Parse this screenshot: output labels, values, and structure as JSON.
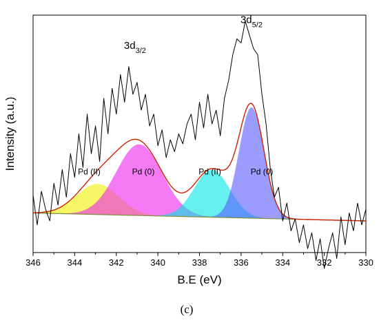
{
  "chart_data": {
    "type": "line",
    "title": "",
    "xlabel": "B.E (eV)",
    "ylabel": "Intensity (a.u.)",
    "xlim": [
      346,
      330
    ],
    "x_reversed": true,
    "x_ticks": [
      346,
      344,
      342,
      340,
      338,
      336,
      334,
      332,
      330
    ],
    "ylim": [
      -0.2,
      1.0
    ],
    "grid": false,
    "legend": "none",
    "panel_label": "(c)",
    "peak_labels": [
      {
        "text": "3d",
        "sub": "3/2",
        "x": 341.1,
        "y": 0.83
      },
      {
        "text": "3d",
        "sub": "5/2",
        "x": 335.5,
        "y": 0.96
      }
    ],
    "components": [
      {
        "name": "Pd (II)",
        "center": 342.9,
        "height": 0.155,
        "sigma": 1.0,
        "color": "#f2f200",
        "label_x": 343.3,
        "label_y": 0.195
      },
      {
        "name": "Pd (0)",
        "center": 340.9,
        "height": 0.36,
        "sigma": 1.1,
        "color": "#ee22ee",
        "label_x": 340.7,
        "label_y": 0.195
      },
      {
        "name": "Pd (II)",
        "center": 337.4,
        "height": 0.24,
        "sigma": 0.85,
        "color": "#00e5e5",
        "label_x": 337.5,
        "label_y": 0.195
      },
      {
        "name": "Pd (0)",
        "center": 335.5,
        "height": 0.56,
        "sigma": 0.6,
        "color": "#5a5aff",
        "label_x": 335.0,
        "label_y": 0.195
      }
    ],
    "background": {
      "x": [
        346,
        330
      ],
      "y": [
        0.0,
        -0.04
      ]
    },
    "series": [
      {
        "type": "noisy-spectrum",
        "color": "#000000",
        "x": [
          346.0,
          345.8,
          345.6,
          345.4,
          345.2,
          345.0,
          344.8,
          344.6,
          344.4,
          344.2,
          344.0,
          343.8,
          343.6,
          343.4,
          343.2,
          343.0,
          342.8,
          342.6,
          342.4,
          342.2,
          342.0,
          341.8,
          341.6,
          341.4,
          341.2,
          341.0,
          340.8,
          340.6,
          340.4,
          340.2,
          340.0,
          339.8,
          339.6,
          339.4,
          339.2,
          339.0,
          338.8,
          338.6,
          338.4,
          338.2,
          338.0,
          337.8,
          337.6,
          337.4,
          337.2,
          337.0,
          336.8,
          336.6,
          336.4,
          336.2,
          336.0,
          335.8,
          335.6,
          335.4,
          335.2,
          335.0,
          334.8,
          334.6,
          334.4,
          334.2,
          334.0,
          333.8,
          333.6,
          333.4,
          333.2,
          333.0,
          332.8,
          332.6,
          332.4,
          332.2,
          332.0,
          331.8,
          331.6,
          331.4,
          331.2,
          331.0,
          330.8,
          330.6,
          330.4,
          330.2,
          330.0
        ],
        "y": [
          0.09,
          -0.06,
          0.11,
          0.02,
          -0.04,
          0.15,
          0.04,
          0.22,
          0.08,
          0.3,
          0.18,
          0.4,
          0.23,
          0.5,
          0.3,
          0.44,
          0.26,
          0.58,
          0.4,
          0.63,
          0.5,
          0.7,
          0.56,
          0.74,
          0.6,
          0.66,
          0.52,
          0.6,
          0.44,
          0.5,
          0.34,
          0.42,
          0.28,
          0.37,
          0.31,
          0.4,
          0.35,
          0.45,
          0.5,
          0.37,
          0.56,
          0.43,
          0.6,
          0.45,
          0.52,
          0.39,
          0.58,
          0.67,
          0.8,
          0.88,
          0.86,
          0.97,
          0.9,
          0.83,
          0.8,
          0.6,
          0.45,
          0.23,
          0.08,
          0.13,
          -0.04,
          0.05,
          -0.09,
          -0.03,
          -0.15,
          -0.06,
          -0.18,
          -0.1,
          -0.24,
          -0.13,
          -0.28,
          -0.18,
          -0.1,
          -0.23,
          -0.02,
          -0.16,
          0.0,
          -0.09,
          0.05,
          -0.06,
          0.02
        ]
      },
      {
        "type": "fit-envelope",
        "color": "#cc2200"
      }
    ]
  }
}
